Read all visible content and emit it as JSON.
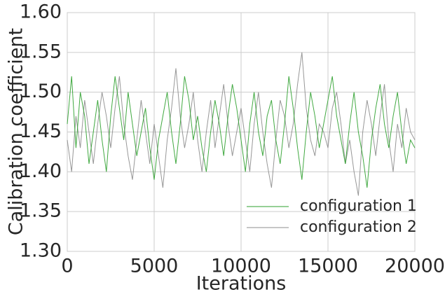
{
  "chart_data": {
    "type": "line",
    "xlabel": "Iterations",
    "ylabel": "Calibration coefficient",
    "x": [
      0,
      250,
      500,
      750,
      1000,
      1250,
      1500,
      1750,
      2000,
      2250,
      2500,
      2750,
      3000,
      3250,
      3500,
      3750,
      4000,
      4250,
      4500,
      4750,
      5000,
      5250,
      5500,
      5750,
      6000,
      6250,
      6500,
      6750,
      7000,
      7250,
      7500,
      7750,
      8000,
      8250,
      8500,
      8750,
      9000,
      9250,
      9500,
      9750,
      10000,
      10250,
      10500,
      10750,
      11000,
      11250,
      11500,
      11750,
      12000,
      12250,
      12500,
      12750,
      13000,
      13250,
      13500,
      13750,
      14000,
      14250,
      14500,
      14750,
      15000,
      15250,
      15500,
      15750,
      16000,
      16250,
      16500,
      16750,
      17000,
      17250,
      17500,
      17750,
      18000,
      18250,
      18500,
      18750,
      19000,
      19250,
      19500,
      19750,
      20000
    ],
    "series": [
      {
        "name": "configuration 1",
        "color": "#2ca02c",
        "values": [
          1.46,
          1.52,
          1.43,
          1.5,
          1.47,
          1.41,
          1.45,
          1.49,
          1.44,
          1.4,
          1.47,
          1.52,
          1.48,
          1.44,
          1.5,
          1.46,
          1.42,
          1.45,
          1.48,
          1.43,
          1.39,
          1.44,
          1.47,
          1.5,
          1.45,
          1.41,
          1.46,
          1.52,
          1.49,
          1.44,
          1.47,
          1.43,
          1.4,
          1.45,
          1.49,
          1.46,
          1.42,
          1.47,
          1.51,
          1.48,
          1.44,
          1.4,
          1.46,
          1.5,
          1.45,
          1.42,
          1.47,
          1.49,
          1.44,
          1.41,
          1.46,
          1.52,
          1.48,
          1.43,
          1.39,
          1.45,
          1.5,
          1.47,
          1.43,
          1.46,
          1.49,
          1.52,
          1.47,
          1.44,
          1.41,
          1.46,
          1.5,
          1.45,
          1.42,
          1.38,
          1.44,
          1.48,
          1.51,
          1.46,
          1.43,
          1.47,
          1.5,
          1.45,
          1.41,
          1.44,
          1.43
        ]
      },
      {
        "name": "configuration 2",
        "color": "#8c8c8c",
        "values": [
          1.44,
          1.4,
          1.47,
          1.43,
          1.49,
          1.45,
          1.41,
          1.46,
          1.5,
          1.47,
          1.43,
          1.48,
          1.52,
          1.46,
          1.42,
          1.39,
          1.44,
          1.49,
          1.45,
          1.41,
          1.46,
          1.42,
          1.38,
          1.44,
          1.48,
          1.53,
          1.47,
          1.43,
          1.46,
          1.5,
          1.44,
          1.4,
          1.45,
          1.49,
          1.43,
          1.47,
          1.51,
          1.46,
          1.42,
          1.45,
          1.48,
          1.44,
          1.4,
          1.46,
          1.5,
          1.45,
          1.41,
          1.38,
          1.44,
          1.49,
          1.47,
          1.43,
          1.46,
          1.51,
          1.55,
          1.48,
          1.44,
          1.42,
          1.46,
          1.45,
          1.43,
          1.48,
          1.5,
          1.46,
          1.41,
          1.44,
          1.4,
          1.37,
          1.45,
          1.49,
          1.46,
          1.42,
          1.47,
          1.51,
          1.44,
          1.4,
          1.46,
          1.43,
          1.48,
          1.45,
          1.44
        ]
      }
    ],
    "xlim": [
      0,
      20000
    ],
    "xticks": [
      0,
      5000,
      10000,
      15000,
      20000
    ],
    "ylim": [
      1.3,
      1.6
    ],
    "yticks": [
      {
        "value": 1.3,
        "label": "1.30"
      },
      1.35,
      {
        "value": 1.4,
        "label": "1.40"
      },
      1.45,
      {
        "value": 1.5,
        "label": "1.50"
      },
      1.55,
      {
        "value": 1.6,
        "label": "1.60"
      }
    ],
    "grid": true,
    "legend": "lower right"
  }
}
